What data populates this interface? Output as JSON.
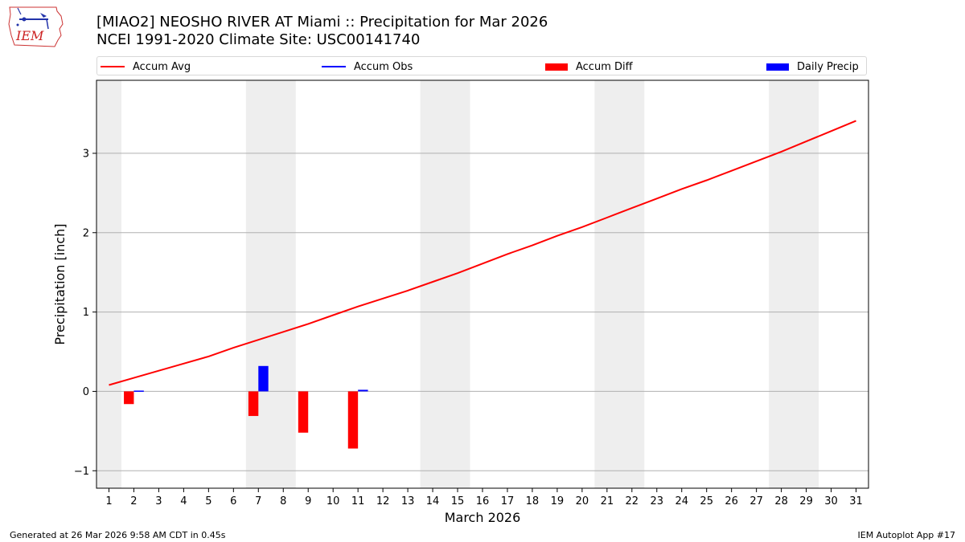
{
  "header": {
    "title_line1": "[MIAO2] NEOSHO RIVER  AT Miami :: Precipitation for Mar 2026",
    "title_line2": "NCEI 1991-2020 Climate Site: USC00141740",
    "logo_text": "IEM"
  },
  "footer": {
    "generated": "Generated at 26 Mar 2026 9:58 AM CDT in 0.45s",
    "app": "IEM Autoplot App #17"
  },
  "colors": {
    "accum_avg": "#ff0000",
    "accum_obs": "#0000ff",
    "accum_diff": "#ff0000",
    "daily_precip": "#0000ff",
    "weekend_band": "#eeeeee",
    "grid": "#b0b0b0"
  },
  "chart_data": {
    "type": "line",
    "xlabel": "March 2026",
    "ylabel": "Precipitation [inch]",
    "xlim": [
      0.5,
      31.5
    ],
    "ylim": [
      -1.22,
      3.92
    ],
    "yticks": [
      -1,
      0,
      1,
      2,
      3
    ],
    "ytick_labels": [
      "−1",
      "0",
      "1",
      "2",
      "3"
    ],
    "days": [
      1,
      2,
      3,
      4,
      5,
      6,
      7,
      8,
      9,
      10,
      11,
      12,
      13,
      14,
      15,
      16,
      17,
      18,
      19,
      20,
      21,
      22,
      23,
      24,
      25,
      26,
      27,
      28,
      29,
      30,
      31
    ],
    "x_tick_labels": [
      "1",
      "2",
      "3",
      "4",
      "5",
      "6",
      "7",
      "8",
      "9",
      "10",
      "11",
      "12",
      "13",
      "14",
      "15",
      "16",
      "17",
      "18",
      "19",
      "20",
      "21",
      "22",
      "23",
      "24",
      "25",
      "26",
      "27",
      "28",
      "29",
      "30",
      "31"
    ],
    "weekend_spans": [
      [
        0.5,
        1.5
      ],
      [
        6.5,
        8.5
      ],
      [
        13.5,
        15.5
      ],
      [
        20.5,
        22.5
      ],
      [
        27.5,
        29.5
      ]
    ],
    "grid": true,
    "legend": {
      "placement": "top",
      "entries": [
        "Accum Avg",
        "Accum Obs",
        "Accum Diff",
        "Daily Precip"
      ]
    },
    "series": [
      {
        "name": "Accum Avg",
        "kind": "line",
        "values": [
          0.08,
          0.17,
          0.26,
          0.35,
          0.44,
          0.55,
          0.65,
          0.75,
          0.85,
          0.96,
          1.07,
          1.17,
          1.27,
          1.38,
          1.49,
          1.61,
          1.73,
          1.84,
          1.96,
          2.07,
          2.19,
          2.31,
          2.43,
          2.55,
          2.66,
          2.78,
          2.9,
          3.02,
          3.15,
          3.28,
          3.41
        ]
      },
      {
        "name": "Accum Diff",
        "kind": "bar",
        "days": [
          2,
          7,
          9,
          11
        ],
        "values": [
          -0.16,
          -0.31,
          -0.52,
          -0.72
        ]
      },
      {
        "name": "Daily Precip",
        "kind": "bar",
        "days": [
          2,
          7,
          11
        ],
        "values": [
          0.01,
          0.32,
          0.02
        ]
      }
    ]
  }
}
